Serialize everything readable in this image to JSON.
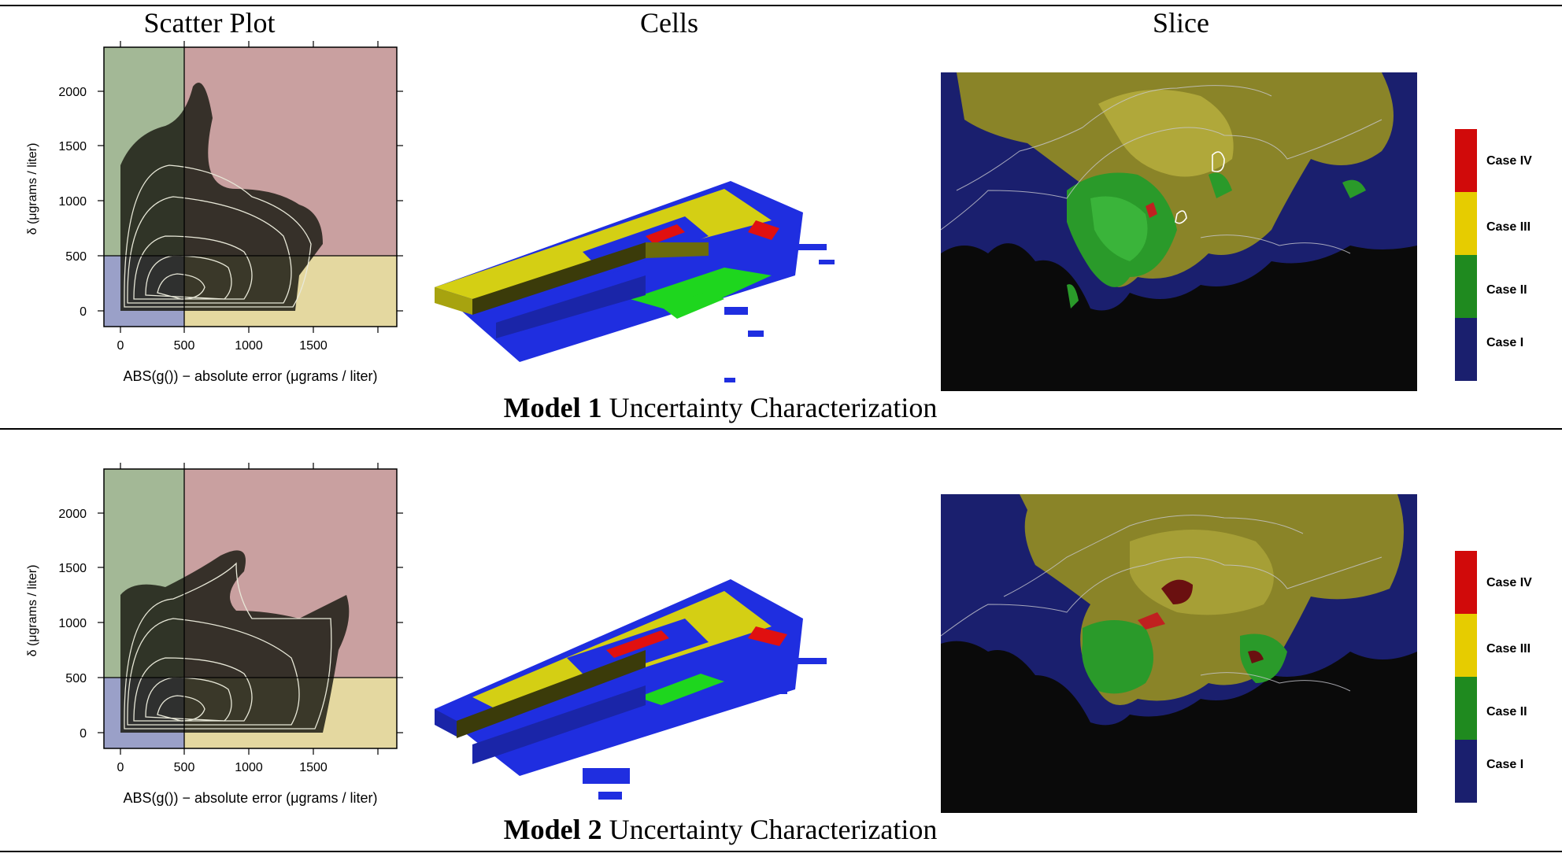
{
  "headers": {
    "scatter": "Scatter Plot",
    "cells": "Cells",
    "slice": "Slice"
  },
  "rows": [
    {
      "caption_bold": "Model 1",
      "caption_rest": " Uncertainty Characterization",
      "scatter": {
        "ylabel": "δ (μgrams / liter)",
        "xlabel": "ABS(g()) − absolute error (μgrams / liter)",
        "xticks": [
          "0",
          "500",
          "1000",
          "1500"
        ],
        "yticks": [
          "0",
          "500",
          "1000",
          "1500",
          "2000"
        ]
      },
      "legend": [
        "Case IV",
        "Case III",
        "Case II",
        "Case I"
      ]
    },
    {
      "caption_bold": "Model 2",
      "caption_rest": " Uncertainty Characterization",
      "scatter": {
        "ylabel": "δ (μgrams / liter)",
        "xlabel": "ABS(g()) − absolute error (μgrams / liter)",
        "xticks": [
          "0",
          "500",
          "1000",
          "1500"
        ],
        "yticks": [
          "0",
          "500",
          "1000",
          "1500",
          "2000"
        ]
      },
      "legend": [
        "Case IV",
        "Case III",
        "Case II",
        "Case I"
      ]
    }
  ],
  "colors": {
    "case1": "#1a1f6e",
    "case2": "#1f8a1f",
    "case3": "#e6cc00",
    "case4": "#d10a0a",
    "q_green": "#a3b896",
    "q_red": "#c9a0a0",
    "q_blue": "#9aa0c8",
    "q_yellow": "#e4d8a0"
  }
}
